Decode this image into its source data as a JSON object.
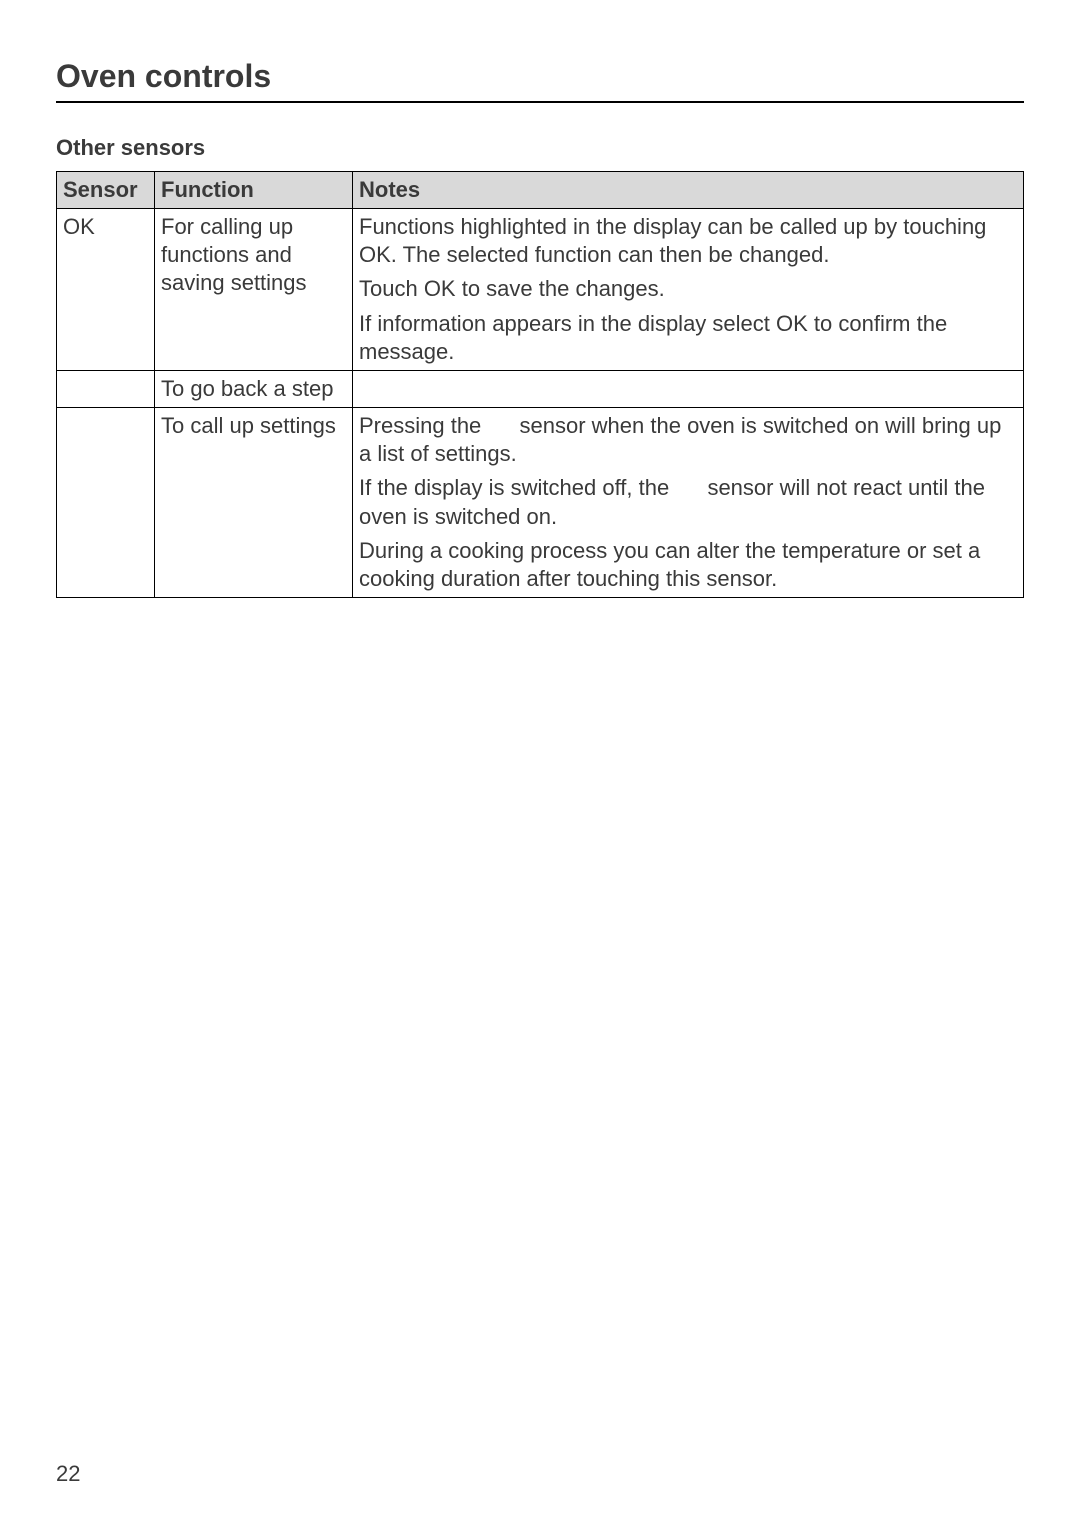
{
  "page_title": "Oven controls",
  "subheading": "Other sensors",
  "table": {
    "columns": [
      "Sensor",
      "Function",
      "Notes"
    ],
    "rows": [
      {
        "sensor": "OK",
        "function": "For calling up functions and saving settings",
        "notes": {
          "p1": "Functions highlighted in the display can be called up by touching OK. The selected function can then be changed.",
          "p2": "Touch OK to save the changes.",
          "p3": "If information appears in the display select OK to confirm the message."
        }
      },
      {
        "sensor": "",
        "function": "To go back a step",
        "notes": {
          "p1": ""
        }
      },
      {
        "sensor": "",
        "function": "To call up settings",
        "notes": {
          "p1a": "Pressing the ",
          "p1b": " sensor when the oven is switched on will bring up a list of settings.",
          "p2a": "If the display is switched off, the ",
          "p2b": " sensor will not react until the oven is switched on.",
          "p3": "During a cooking process you can alter the temperature or set a cooking duration after touching this sensor."
        }
      }
    ]
  },
  "page_number": "22"
}
